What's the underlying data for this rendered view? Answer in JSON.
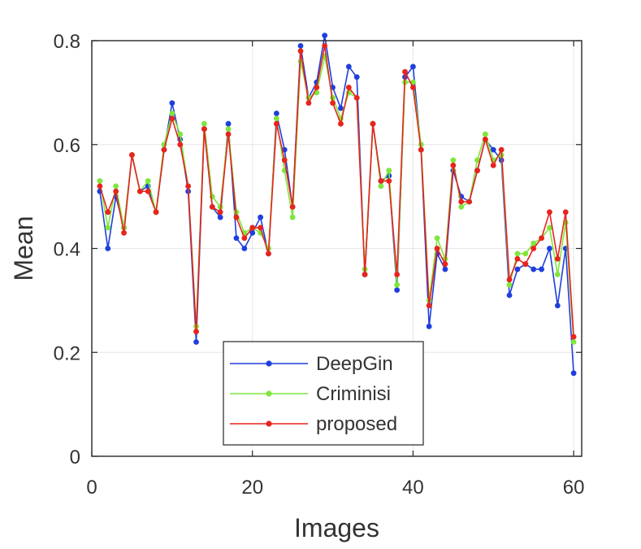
{
  "chart_data": {
    "type": "line",
    "xlabel": "Images",
    "ylabel": "Mean",
    "xlim": [
      0,
      61
    ],
    "ylim": [
      0,
      0.8
    ],
    "xticks": [
      "0",
      "20",
      "40",
      "60"
    ],
    "yticks": [
      "0",
      "0.2",
      "0.4",
      "0.6",
      "0.8"
    ],
    "grid": true,
    "legend_position": "bottom-center",
    "x": [
      1,
      2,
      3,
      4,
      5,
      6,
      7,
      8,
      9,
      10,
      11,
      12,
      13,
      14,
      15,
      16,
      17,
      18,
      19,
      20,
      21,
      22,
      23,
      24,
      25,
      26,
      27,
      28,
      29,
      30,
      31,
      32,
      33,
      34,
      35,
      36,
      37,
      38,
      39,
      40,
      41,
      42,
      43,
      44,
      45,
      46,
      47,
      48,
      49,
      50,
      51,
      52,
      53,
      54,
      55,
      56,
      57,
      58,
      59,
      60
    ],
    "series": [
      {
        "name": "DeepGin",
        "color": "#1f3fdc",
        "values": [
          0.51,
          0.4,
          0.5,
          0.44,
          0.58,
          0.51,
          0.52,
          0.47,
          0.59,
          0.68,
          0.61,
          0.51,
          0.22,
          0.63,
          0.48,
          0.46,
          0.64,
          0.42,
          0.4,
          0.43,
          0.46,
          0.39,
          0.66,
          0.59,
          0.48,
          0.79,
          0.69,
          0.72,
          0.81,
          0.71,
          0.67,
          0.75,
          0.73,
          0.35,
          0.64,
          0.53,
          0.54,
          0.32,
          0.73,
          0.75,
          0.59,
          0.25,
          0.39,
          0.36,
          0.55,
          0.5,
          0.49,
          0.55,
          0.61,
          0.59,
          0.57,
          0.31,
          0.36,
          0.37,
          0.36,
          0.36,
          0.4,
          0.29,
          0.4,
          0.16
        ]
      },
      {
        "name": "Criminisi",
        "color": "#7ee63c",
        "values": [
          0.53,
          0.44,
          0.52,
          0.44,
          0.58,
          0.51,
          0.53,
          0.47,
          0.6,
          0.66,
          0.62,
          0.52,
          0.25,
          0.64,
          0.5,
          0.48,
          0.63,
          0.47,
          0.43,
          0.44,
          0.43,
          0.4,
          0.65,
          0.55,
          0.46,
          0.76,
          0.69,
          0.7,
          0.77,
          0.69,
          0.65,
          0.7,
          0.69,
          0.36,
          0.64,
          0.52,
          0.55,
          0.33,
          0.72,
          0.72,
          0.6,
          0.3,
          0.42,
          0.38,
          0.57,
          0.48,
          0.49,
          0.57,
          0.62,
          0.57,
          0.58,
          0.33,
          0.39,
          0.39,
          0.41,
          0.42,
          0.44,
          0.35,
          0.45,
          0.22
        ]
      },
      {
        "name": "proposed",
        "color": "#e8241c",
        "values": [
          0.52,
          0.47,
          0.51,
          0.43,
          0.58,
          0.51,
          0.51,
          0.47,
          0.59,
          0.65,
          0.6,
          0.52,
          0.24,
          0.63,
          0.48,
          0.47,
          0.62,
          0.46,
          0.42,
          0.44,
          0.44,
          0.39,
          0.64,
          0.57,
          0.48,
          0.78,
          0.68,
          0.71,
          0.79,
          0.68,
          0.64,
          0.71,
          0.69,
          0.35,
          0.64,
          0.53,
          0.53,
          0.35,
          0.74,
          0.71,
          0.59,
          0.29,
          0.4,
          0.37,
          0.56,
          0.49,
          0.49,
          0.55,
          0.61,
          0.56,
          0.59,
          0.34,
          0.38,
          0.37,
          0.4,
          0.42,
          0.47,
          0.38,
          0.47,
          0.23
        ]
      }
    ]
  }
}
